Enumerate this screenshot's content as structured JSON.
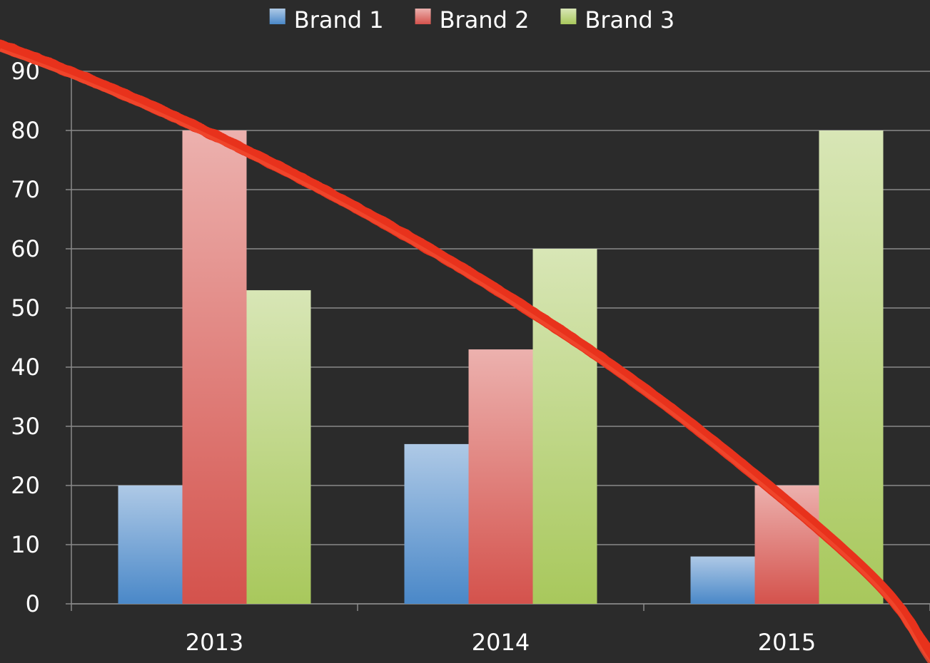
{
  "chart_data": {
    "type": "bar",
    "categories": [
      "2013",
      "2014",
      "2015"
    ],
    "series": [
      {
        "name": "Brand 1",
        "color": "#4a88c8",
        "values": [
          20,
          27,
          8
        ]
      },
      {
        "name": "Brand 2",
        "color": "#d4524c",
        "values": [
          80,
          43,
          20
        ]
      },
      {
        "name": "Brand 3",
        "color": "#a8c85c",
        "values": [
          53,
          60,
          80
        ]
      }
    ],
    "ylim": [
      0,
      90
    ],
    "yticks": [
      0,
      10,
      20,
      30,
      40,
      50,
      60,
      70,
      80,
      90
    ],
    "grid": true,
    "legend": "top"
  }
}
